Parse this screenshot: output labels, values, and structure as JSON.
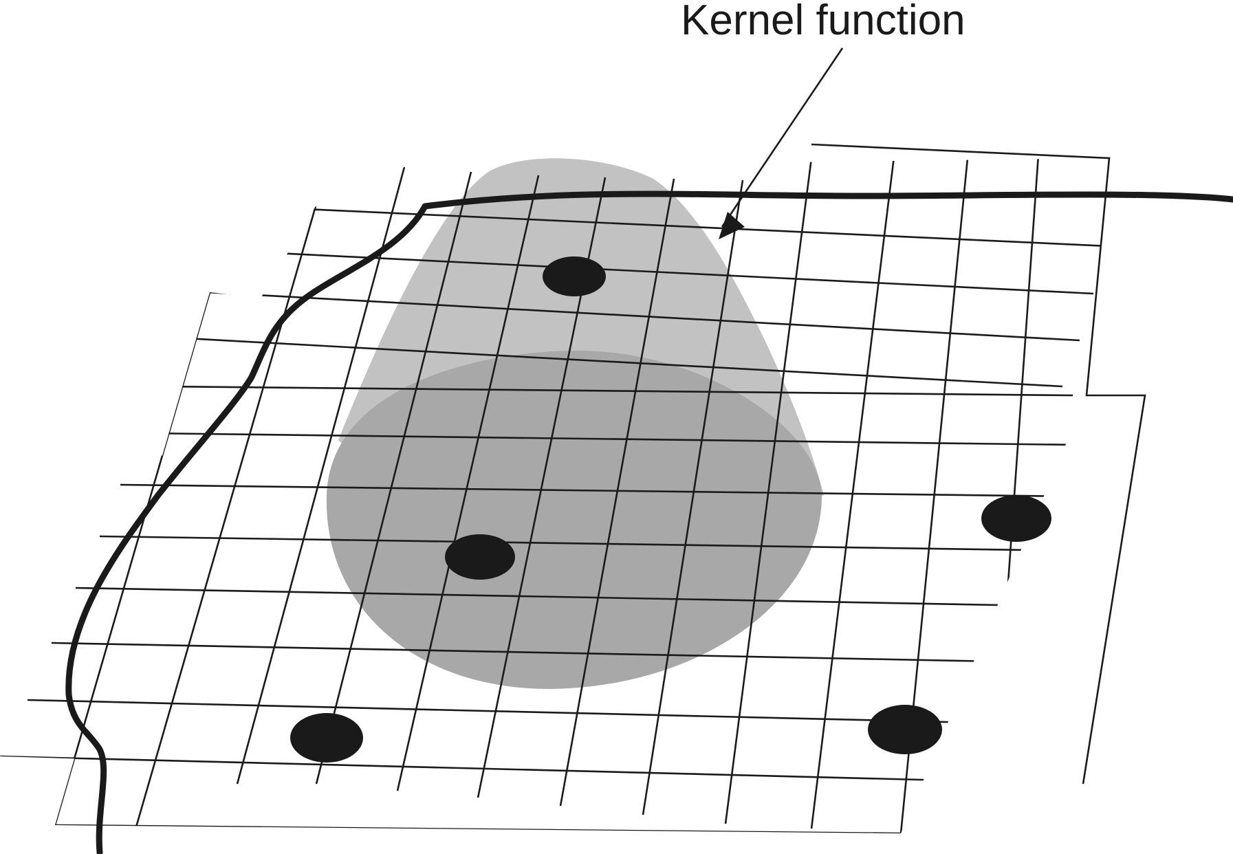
{
  "annotation": {
    "label": "Kernel function"
  },
  "colors": {
    "line": "#1a1a1a",
    "kernel_outer": "#c2c2c2",
    "kernel_inner": "#a8a8a8",
    "point": "#1a1a1a",
    "background": "#ffffff"
  },
  "icons": {
    "arrow": "arrowhead",
    "point": "filled-ellipse"
  }
}
